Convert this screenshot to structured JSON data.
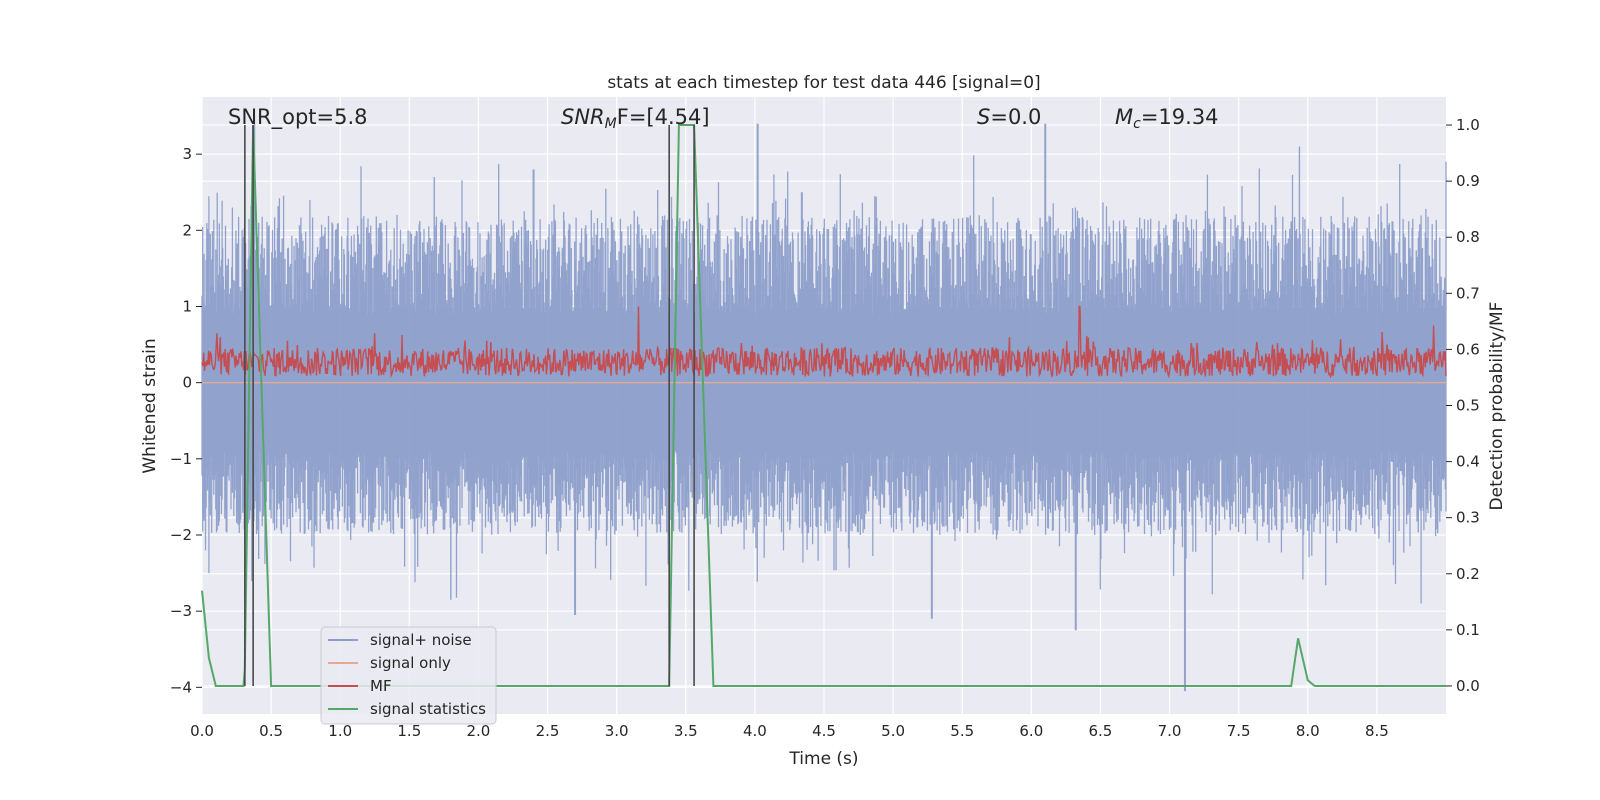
{
  "chart_data": {
    "type": "line",
    "title": "stats at each timestep for test data 446 [signal=0]",
    "xlabel": "Time (s)",
    "ylabel": "Whitened strain",
    "ylabel_right": "Detection probability/MF",
    "xlim": [
      0.0,
      9.0
    ],
    "ylim": [
      -4.35,
      3.75
    ],
    "ylim_right": [
      -0.05,
      1.05
    ],
    "xticks": [
      "0.0",
      "0.5",
      "1.0",
      "1.5",
      "2.0",
      "2.5",
      "3.0",
      "3.5",
      "4.0",
      "4.5",
      "5.0",
      "5.5",
      "6.0",
      "6.5",
      "7.0",
      "7.5",
      "8.0",
      "8.5"
    ],
    "yticks": [
      "3",
      "2",
      "1",
      "0",
      "−1",
      "−2",
      "−3",
      "−4"
    ],
    "yticks_right": [
      "1.0",
      "0.9",
      "0.8",
      "0.7",
      "0.6",
      "0.5",
      "0.4",
      "0.3",
      "0.2",
      "0.1",
      "0.0"
    ],
    "grid": true,
    "legend_position": "lower-left",
    "annotations": {
      "snr_opt": "SNR_opt=5.8",
      "snr_mf_base": "SNR",
      "snr_mf_sub": "M",
      "snr_mf_rest": "F=[4.54]",
      "s_base": "S",
      "s_rest": "=0.0",
      "mc_base": "M",
      "mc_sub": "c",
      "mc_rest": "=19.34"
    },
    "vertical_lines_x": [
      0.31,
      0.37,
      3.38,
      3.56
    ],
    "series": [
      {
        "name": "signal+ noise",
        "color": "#8c9fca",
        "kind": "noise",
        "axis": "left",
        "peak_y": [
          [
            0.38,
            3.4
          ],
          [
            4.02,
            3.4
          ],
          [
            6.1,
            3.4
          ],
          [
            7.94,
            3.1
          ],
          [
            9.0,
            2.9
          ],
          [
            2.4,
            2.8
          ],
          [
            0.22,
            2.3
          ],
          [
            4.34,
            2.5
          ],
          [
            1.68,
            2.7
          ]
        ],
        "trough_y": [
          [
            0.32,
            -2.7
          ],
          [
            1.8,
            -2.85
          ],
          [
            2.7,
            -3.05
          ],
          [
            5.28,
            -3.1
          ],
          [
            6.32,
            -3.25
          ],
          [
            7.11,
            -4.05
          ],
          [
            8.82,
            -2.9
          ],
          [
            0.05,
            -2.5
          ]
        ]
      },
      {
        "name": "signal only",
        "color": "#e9a98f",
        "kind": "flat",
        "axis": "left",
        "value": 0
      },
      {
        "name": "MF",
        "color": "#c44e52",
        "kind": "mf",
        "axis": "left",
        "peaks": [
          [
            3.16,
            1.0
          ],
          [
            6.35,
            1.0
          ],
          [
            0.62,
            0.55
          ],
          [
            1.25,
            0.65
          ],
          [
            8.91,
            0.75
          ]
        ]
      },
      {
        "name": "signal statistics",
        "color": "#55a868",
        "kind": "line",
        "axis": "right",
        "x": [
          0.0,
          0.05,
          0.1,
          0.2,
          0.3,
          0.31,
          0.37,
          0.5,
          1.0,
          2.0,
          3.0,
          3.38,
          3.45,
          3.56,
          3.7,
          4.5,
          5.5,
          6.5,
          7.5,
          7.88,
          7.93,
          8.0,
          8.05,
          8.5,
          9.0
        ],
        "y": [
          0.17,
          0.05,
          0.0,
          0.0,
          0.0,
          0.03,
          1.0,
          0.0,
          0.0,
          0.0,
          0.0,
          0.0,
          1.0,
          1.0,
          0.0,
          0.0,
          0.0,
          0.0,
          0.0,
          0.0,
          0.085,
          0.01,
          0.0,
          0.0,
          0.0
        ]
      }
    ]
  }
}
